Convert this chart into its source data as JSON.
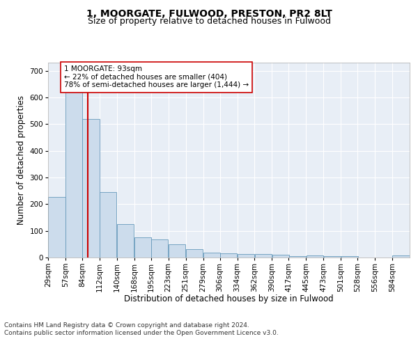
{
  "title": "1, MOORGATE, FULWOOD, PRESTON, PR2 8LT",
  "subtitle": "Size of property relative to detached houses in Fulwood",
  "xlabel": "Distribution of detached houses by size in Fulwood",
  "ylabel": "Number of detached properties",
  "bar_color": "#ccdcec",
  "bar_edge_color": "#6699bb",
  "background_color": "#e8eef6",
  "grid_color": "#ffffff",
  "property_size": 93,
  "property_label": "1 MOORGATE: 93sqm",
  "annotation_line1": "← 22% of detached houses are smaller (404)",
  "annotation_line2": "78% of semi-detached houses are larger (1,444) →",
  "red_line_color": "#cc0000",
  "annotation_box_color": "#ffffff",
  "annotation_box_edge": "#cc0000",
  "bins_left_edges": [
    29,
    57,
    84,
    112,
    140,
    168,
    195,
    223,
    251,
    279,
    306,
    334,
    362,
    390,
    417,
    445,
    473,
    501,
    528,
    556,
    584
  ],
  "bin_width": 28,
  "bin_heights": [
    228,
    660,
    520,
    245,
    125,
    75,
    68,
    50,
    30,
    18,
    15,
    12,
    12,
    10,
    5,
    8,
    5,
    5,
    0,
    0,
    8
  ],
  "ylim": [
    0,
    730
  ],
  "yticks": [
    0,
    100,
    200,
    300,
    400,
    500,
    600,
    700
  ],
  "footer_line1": "Contains HM Land Registry data © Crown copyright and database right 2024.",
  "footer_line2": "Contains public sector information licensed under the Open Government Licence v3.0.",
  "title_fontsize": 10,
  "subtitle_fontsize": 9,
  "axis_label_fontsize": 8.5,
  "tick_fontsize": 7.5,
  "footer_fontsize": 6.5
}
